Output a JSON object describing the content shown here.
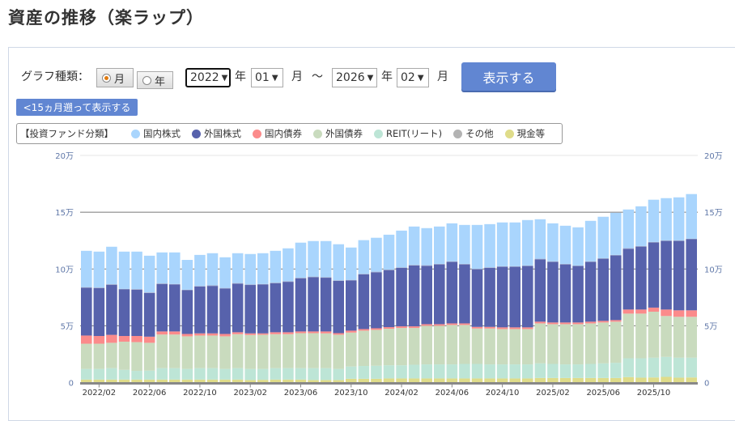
{
  "page_title": "資産の推移（楽ラップ）",
  "controls": {
    "graph_type_label": "グラフ種類：",
    "radio_month": "月",
    "radio_year": "年",
    "radio_selected": "月",
    "from_year": "2022",
    "year_unit": "年",
    "from_month": "01",
    "month_unit": "月",
    "tilde": "～",
    "to_year": "2026",
    "to_month": "02",
    "show_button": "表示する",
    "back_button": "<15ヵ月遡って表示する"
  },
  "legend": {
    "heading": "【投資ファンド分類】",
    "items": [
      {
        "label": "国内株式",
        "color": "#a9d5fd"
      },
      {
        "label": "外国株式",
        "color": "#5762ac"
      },
      {
        "label": "国内債券",
        "color": "#fb8b8b"
      },
      {
        "label": "外国債券",
        "color": "#c9dbbe"
      },
      {
        "label": "REIT(リート)",
        "color": "#bde5d6"
      },
      {
        "label": "その他",
        "color": "#b3b3b3"
      },
      {
        "label": "現金等",
        "color": "#dfdc8a"
      }
    ]
  },
  "chart_data": {
    "type": "bar",
    "stacked": true,
    "unit": "万",
    "ylim": [
      0,
      20
    ],
    "yticks": [
      "0",
      "5万",
      "10万",
      "15万",
      "20万"
    ],
    "grid": true,
    "xtick_labels": [
      "2022/02",
      "2022/06",
      "2022/10",
      "2023/02",
      "2023/06",
      "2023/10",
      "2024/02",
      "2024/06",
      "2024/10",
      "2025/02",
      "2025/06",
      "2025/10"
    ],
    "categories": [
      "2022/01",
      "2022/02",
      "2022/03",
      "2022/04",
      "2022/05",
      "2022/06",
      "2022/07",
      "2022/08",
      "2022/09",
      "2022/10",
      "2022/11",
      "2022/12",
      "2023/01",
      "2023/02",
      "2023/03",
      "2023/04",
      "2023/05",
      "2023/06",
      "2023/07",
      "2023/08",
      "2023/09",
      "2023/10",
      "2023/11",
      "2023/12",
      "2024/01",
      "2024/02",
      "2024/03",
      "2024/04",
      "2024/05",
      "2024/06",
      "2024/07",
      "2024/08",
      "2024/09",
      "2024/10",
      "2024/11",
      "2024/12",
      "2025/01",
      "2025/02",
      "2025/03",
      "2025/04",
      "2025/05",
      "2025/06",
      "2025/07",
      "2025/08",
      "2025/09",
      "2025/10",
      "2025/11",
      "2025/12",
      "2026/01"
    ],
    "series": [
      {
        "name": "現金等",
        "color": "#dfdc8a",
        "values": [
          0.26,
          0.26,
          0.26,
          0.26,
          0.26,
          0.26,
          0.26,
          0.26,
          0.26,
          0.26,
          0.26,
          0.26,
          0.26,
          0.22,
          0.24,
          0.26,
          0.26,
          0.26,
          0.22,
          0.22,
          0.22,
          0.33,
          0.33,
          0.33,
          0.36,
          0.36,
          0.36,
          0.36,
          0.36,
          0.36,
          0.36,
          0.36,
          0.36,
          0.36,
          0.36,
          0.36,
          0.4,
          0.4,
          0.4,
          0.4,
          0.4,
          0.4,
          0.4,
          0.48,
          0.43,
          0.45,
          0.5,
          0.43,
          0.45
        ]
      },
      {
        "name": "REIT(リート)",
        "color": "#bde5d6",
        "values": [
          0.94,
          0.94,
          1.01,
          0.86,
          0.77,
          0.79,
          1.01,
          1.01,
          0.94,
          1.01,
          1.01,
          0.94,
          1.01,
          0.98,
          0.96,
          1.01,
          1.01,
          1.01,
          1.05,
          1.05,
          0.98,
          1.08,
          1.13,
          1.15,
          1.16,
          1.16,
          1.21,
          1.24,
          1.24,
          1.24,
          1.28,
          1.28,
          1.24,
          1.24,
          1.24,
          1.24,
          1.29,
          1.24,
          1.2,
          1.2,
          1.24,
          1.29,
          1.34,
          1.66,
          1.71,
          1.74,
          1.76,
          1.76,
          1.74
        ]
      },
      {
        "name": "外国債券",
        "color": "#c9dbbe",
        "values": [
          2.22,
          2.22,
          2.23,
          2.48,
          2.53,
          2.45,
          2.96,
          2.96,
          2.87,
          2.87,
          2.87,
          2.87,
          2.99,
          2.99,
          3.01,
          2.99,
          2.99,
          3.08,
          3.08,
          3.06,
          3.01,
          2.99,
          3.11,
          3.16,
          3.22,
          3.29,
          3.24,
          3.4,
          3.4,
          3.47,
          3.43,
          3.12,
          3.16,
          3.11,
          3.11,
          3.11,
          3.52,
          3.5,
          3.54,
          3.54,
          3.57,
          3.6,
          3.62,
          3.93,
          3.93,
          4.05,
          3.6,
          3.6,
          3.6
        ]
      },
      {
        "name": "国内債券",
        "color": "#fb8b8b",
        "values": [
          0.72,
          0.68,
          0.7,
          0.5,
          0.54,
          0.54,
          0.27,
          0.27,
          0.21,
          0.19,
          0.19,
          0.21,
          0.17,
          0.14,
          0.12,
          0.17,
          0.17,
          0.15,
          0.15,
          0.17,
          0.14,
          0.17,
          0.14,
          0.14,
          0.14,
          0.14,
          0.14,
          0.14,
          0.14,
          0.14,
          0.14,
          0.14,
          0.14,
          0.15,
          0.15,
          0.15,
          0.15,
          0.15,
          0.15,
          0.15,
          0.15,
          0.14,
          0.14,
          0.36,
          0.36,
          0.36,
          0.57,
          0.57,
          0.57
        ]
      },
      {
        "name": "外国株式",
        "color": "#5762ac",
        "values": [
          4.21,
          4.22,
          4.41,
          4.1,
          4.08,
          3.85,
          4.18,
          4.13,
          3.85,
          4.12,
          4.18,
          4.0,
          4.28,
          4.26,
          4.3,
          4.32,
          4.44,
          4.68,
          4.78,
          4.73,
          4.6,
          4.42,
          4.81,
          4.93,
          5.02,
          5.14,
          5.36,
          5.14,
          5.26,
          5.41,
          5.19,
          5.07,
          5.19,
          5.33,
          5.33,
          5.4,
          5.49,
          5.33,
          5.11,
          4.97,
          5.26,
          5.47,
          5.69,
          5.35,
          5.54,
          5.73,
          6.04,
          6.11,
          6.26
        ]
      },
      {
        "name": "その他",
        "color": "#9aa5c8",
        "values": [
          0.05,
          0.05,
          0.05,
          0.05,
          0.05,
          0.05,
          0.05,
          0.05,
          0.05,
          0.05,
          0.05,
          0.05,
          0.05,
          0.05,
          0.05,
          0.05,
          0.05,
          0.05,
          0.05,
          0.05,
          0.05,
          0.05,
          0.05,
          0.05,
          0.05,
          0.05,
          0.05,
          0.05,
          0.05,
          0.05,
          0.05,
          0.05,
          0.05,
          0.05,
          0.05,
          0.05,
          0.05,
          0.05,
          0.05,
          0.05,
          0.05,
          0.05,
          0.05,
          0.05,
          0.05,
          0.05,
          0.05,
          0.05,
          0.05
        ]
      },
      {
        "name": "国内株式",
        "color": "#a9d5fd",
        "values": [
          3.2,
          3.16,
          3.3,
          3.28,
          3.3,
          3.23,
          2.73,
          2.78,
          2.62,
          2.74,
          2.83,
          2.7,
          2.63,
          2.68,
          2.71,
          2.8,
          2.9,
          3.09,
          3.13,
          3.18,
          3.18,
          2.85,
          2.97,
          2.99,
          3.07,
          3.24,
          3.38,
          3.27,
          3.29,
          3.35,
          3.43,
          3.86,
          3.81,
          3.86,
          3.86,
          4.0,
          3.48,
          3.35,
          3.36,
          3.36,
          3.57,
          3.65,
          3.71,
          3.41,
          3.5,
          3.72,
          3.72,
          3.79,
          3.93
        ]
      }
    ]
  }
}
